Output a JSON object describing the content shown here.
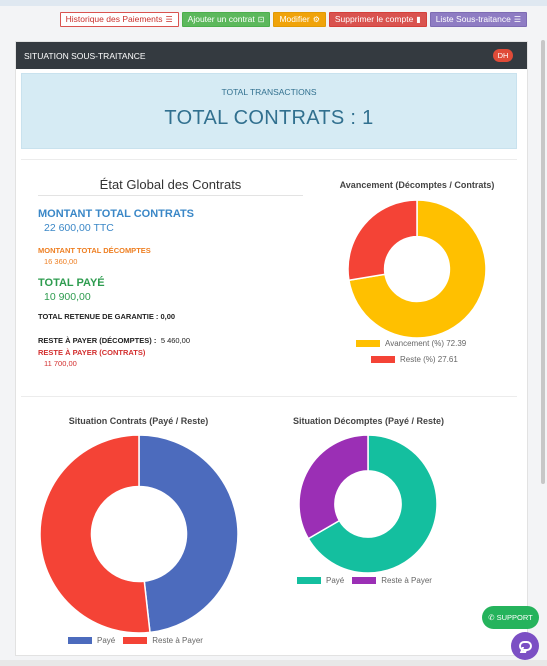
{
  "toolbar": {
    "historique_label": "Historique des Paiements",
    "ajouter_label": "Ajouter un contrat",
    "modifier_label": "Modifier",
    "supprimer_label": "Supprimer le compte",
    "liste_label": "Liste Sous-traitance"
  },
  "card": {
    "title": "SITUATION SOUS-TRAITANCE",
    "badge": "DH"
  },
  "banner": {
    "subtitle": "TOTAL TRANSACTIONS",
    "headline": "TOTAL CONTRATS : 1"
  },
  "etat": {
    "title": "État Global des Contrats",
    "montant_total_label": "MONTANT TOTAL CONTRATS",
    "montant_total_value": "22 600,00 TTC",
    "montant_decomptes_label": "MONTANT TOTAL DÉCOMPTES",
    "montant_decomptes_value": "16 360,00",
    "total_paye_label": "TOTAL PAYÉ",
    "total_paye_value": "10 900,00",
    "retenue_line": "TOTAL RETENUE DE GARANTIE : 0,00",
    "reste_decomptes_label": "RESTE À PAYER (DÉCOMPTES) :",
    "reste_decomptes_value": "5 460,00",
    "reste_contrats_label": "RESTE À PAYER (CONTRATS)",
    "reste_contrats_value": "11 700,00"
  },
  "widgets": {
    "support_label": "SUPPORT"
  },
  "colors": {
    "gold": "#ffc000",
    "red": "#f44336",
    "blue": "#4c6bbd",
    "teal": "#14bf9f",
    "purple": "#9b2fb5"
  },
  "chart_data": [
    {
      "type": "pie",
      "title": "Avancement (Décomptes / Contrats)",
      "categories": [
        "Avancement (%)",
        "Reste (%)"
      ],
      "values": [
        72.39,
        27.61
      ],
      "legend_labels": [
        "Avancement (%) 72.39",
        "Reste (%) 27.61"
      ],
      "colors": [
        "#ffc000",
        "#f44336"
      ],
      "legend": "bottom"
    },
    {
      "type": "pie",
      "title": "Situation Contrats (Payé / Reste)",
      "categories": [
        "Payé",
        "Reste à Payer"
      ],
      "values": [
        10900,
        11700
      ],
      "colors": [
        "#4c6bbd",
        "#f44336"
      ],
      "legend": "bottom"
    },
    {
      "type": "pie",
      "title": "Situation Décomptes (Payé / Reste)",
      "categories": [
        "Payé",
        "Reste à Payer"
      ],
      "values": [
        10900,
        5460
      ],
      "colors": [
        "#14bf9f",
        "#9b2fb5"
      ],
      "legend": "bottom"
    }
  ]
}
